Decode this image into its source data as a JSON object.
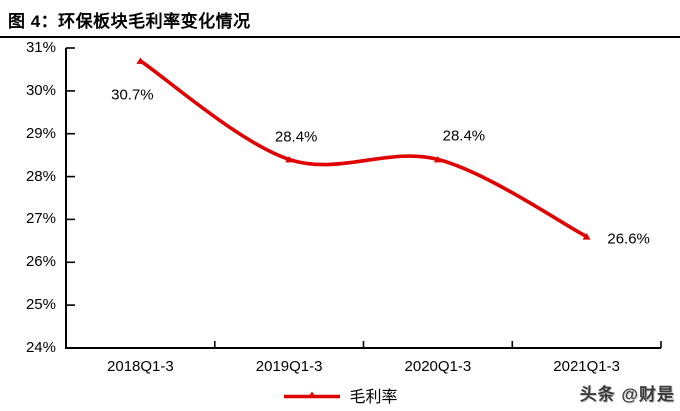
{
  "title": "图 4：环保板块毛利率变化情况",
  "watermark": "头条 @财是",
  "chart_data": {
    "type": "line",
    "title": "图 4：环保板块毛利率变化情况",
    "categories": [
      "2018Q1-3",
      "2019Q1-3",
      "2020Q1-3",
      "2021Q1-3"
    ],
    "series": [
      {
        "name": "毛利率",
        "values": [
          30.7,
          28.4,
          28.4,
          26.6
        ],
        "color": "#e00000"
      }
    ],
    "data_labels": [
      "30.7%",
      "28.4%",
      "28.4%",
      "26.6%"
    ],
    "y_ticks": [
      "31%",
      "30%",
      "29%",
      "28%",
      "27%",
      "26%",
      "25%",
      "24%"
    ],
    "ylim": [
      24,
      31
    ],
    "xlabel": "",
    "ylabel": "",
    "grid": false,
    "line_smooth": true,
    "marker": "triangle-up",
    "legend_position": "bottom",
    "axis_color": "#000000"
  }
}
